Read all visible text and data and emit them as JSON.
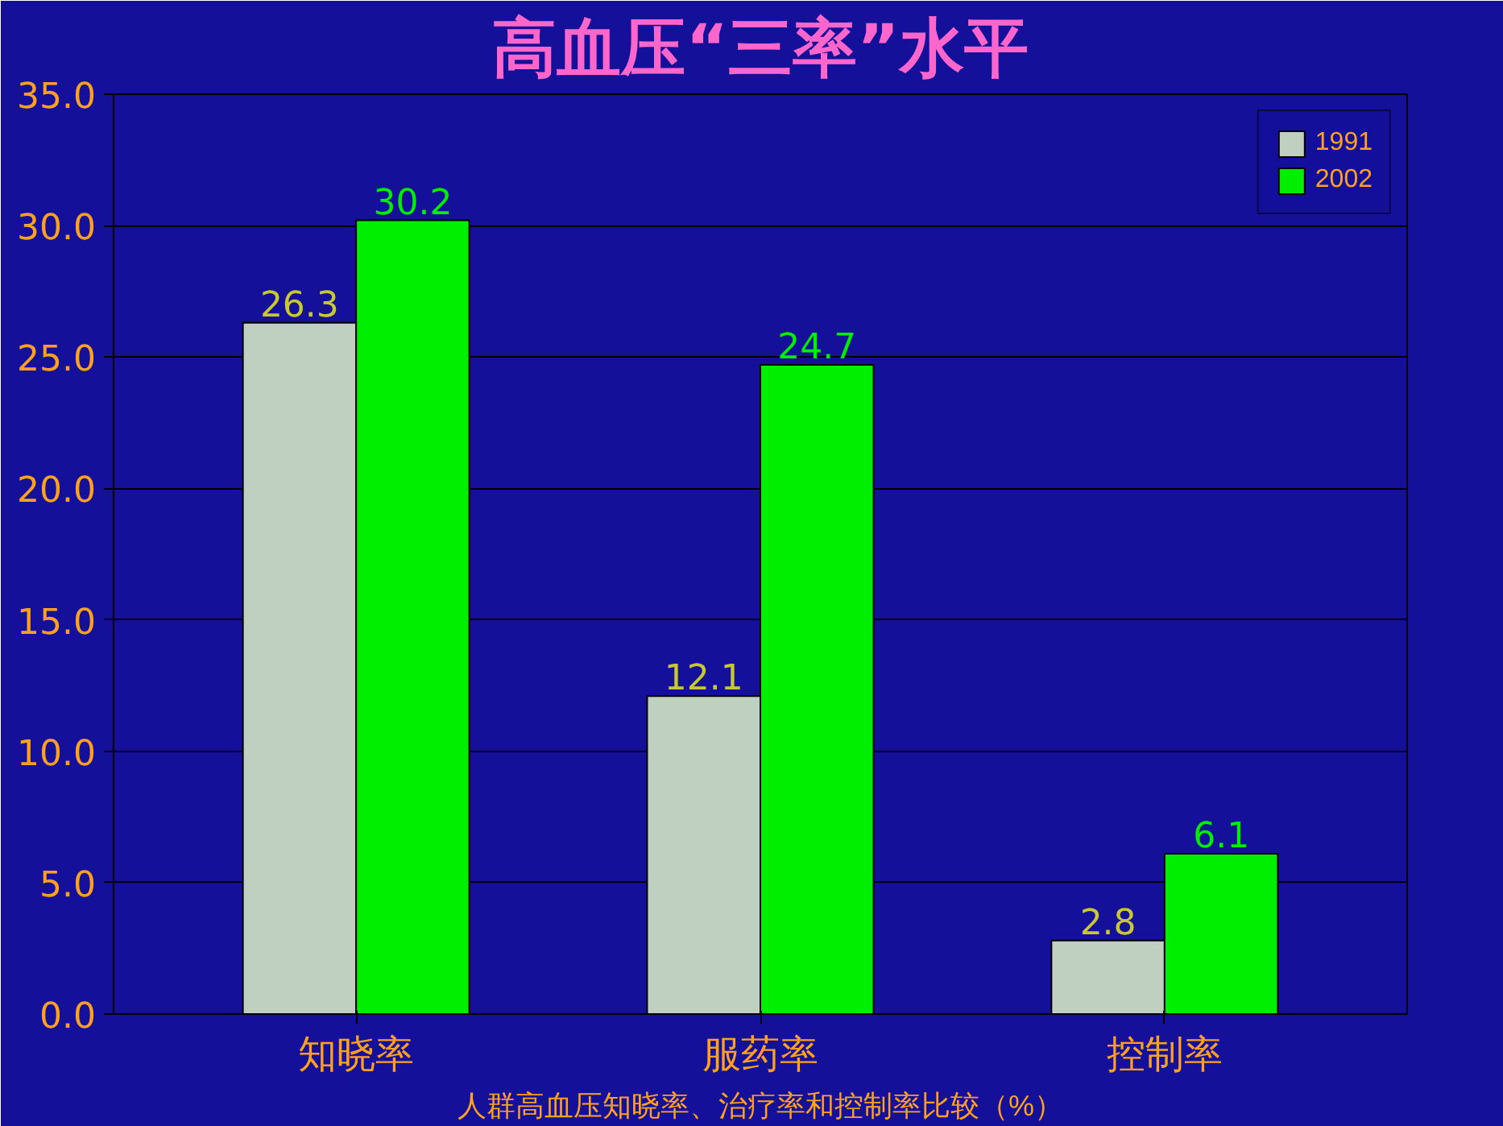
{
  "chart_data": {
    "type": "bar",
    "title": "高血压“三率”水平",
    "xlabel": "人群高血压知晓率、治疗率和控制率比较（%）",
    "categories": [
      "知晓率",
      "服药率",
      "控制率"
    ],
    "series": [
      {
        "name": "1991",
        "color": "#c0d0c0",
        "values": [
          26.3,
          12.1,
          2.8
        ]
      },
      {
        "name": "2002",
        "color": "#00ee00",
        "values": [
          30.2,
          24.7,
          6.1
        ]
      }
    ],
    "ylim": [
      0,
      35
    ],
    "yticks": [
      {
        "value": 0,
        "label": "0.0"
      },
      {
        "value": 5,
        "label": "5.0"
      },
      {
        "value": 10,
        "label": "10.0"
      },
      {
        "value": 15,
        "label": "15.0"
      },
      {
        "value": 20,
        "label": "20.0"
      },
      {
        "value": 25,
        "label": "25.0"
      },
      {
        "value": 30,
        "label": "30.0"
      },
      {
        "value": 35,
        "label": "35.0"
      }
    ],
    "grid": "y",
    "legend": "top right",
    "data_labels": true
  }
}
